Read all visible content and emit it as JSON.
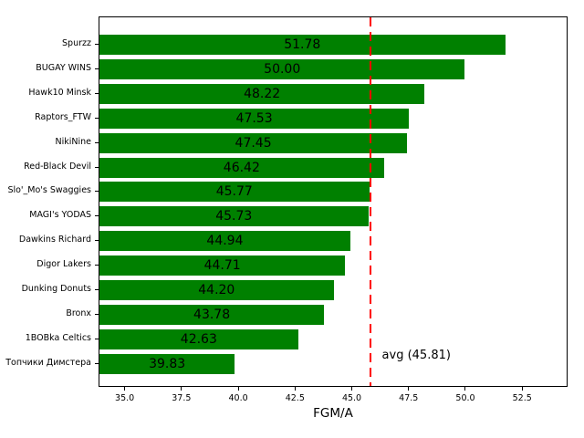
{
  "chart_data": {
    "type": "bar",
    "orientation": "horizontal",
    "title": "",
    "xlabel": "FGM/A",
    "ylabel": "",
    "categories": [
      "Spurzz",
      "BUGAY WINS",
      "Hawk10 Minsk",
      "Raptors_FTW",
      "NikiNine",
      "Red-Black Devil",
      "Slo'_Mo's Swaggies",
      "MAGI's YODAS",
      "Dawkins Richard",
      "Digor Lakers",
      "Dunking Donuts",
      "Bronx",
      "1BOBka Celtics",
      "Топчики Димстера"
    ],
    "values": [
      51.78,
      50.0,
      48.22,
      47.53,
      47.45,
      46.42,
      45.77,
      45.73,
      44.94,
      44.71,
      44.2,
      43.78,
      42.63,
      39.83
    ],
    "value_labels": [
      "51.78",
      "50.00",
      "48.22",
      "47.53",
      "47.45",
      "46.42",
      "45.77",
      "45.73",
      "44.94",
      "44.71",
      "44.20",
      "43.78",
      "42.63",
      "39.83"
    ],
    "x_ticks": [
      35.0,
      37.5,
      40.0,
      42.5,
      45.0,
      47.5,
      50.0,
      52.5
    ],
    "x_tick_labels": [
      "35.0",
      "37.5",
      "40.0",
      "42.5",
      "45.0",
      "47.5",
      "50.0",
      "52.5"
    ],
    "xlim": [
      33.85,
      54.5
    ],
    "bars_start_at": 0,
    "avg_line": {
      "value": 45.81,
      "label": "avg (45.81)",
      "color": "#ff0000",
      "style": "dashed"
    },
    "bar_color": "#008000",
    "text_color": "#000000",
    "grid": false,
    "legend": "none"
  }
}
